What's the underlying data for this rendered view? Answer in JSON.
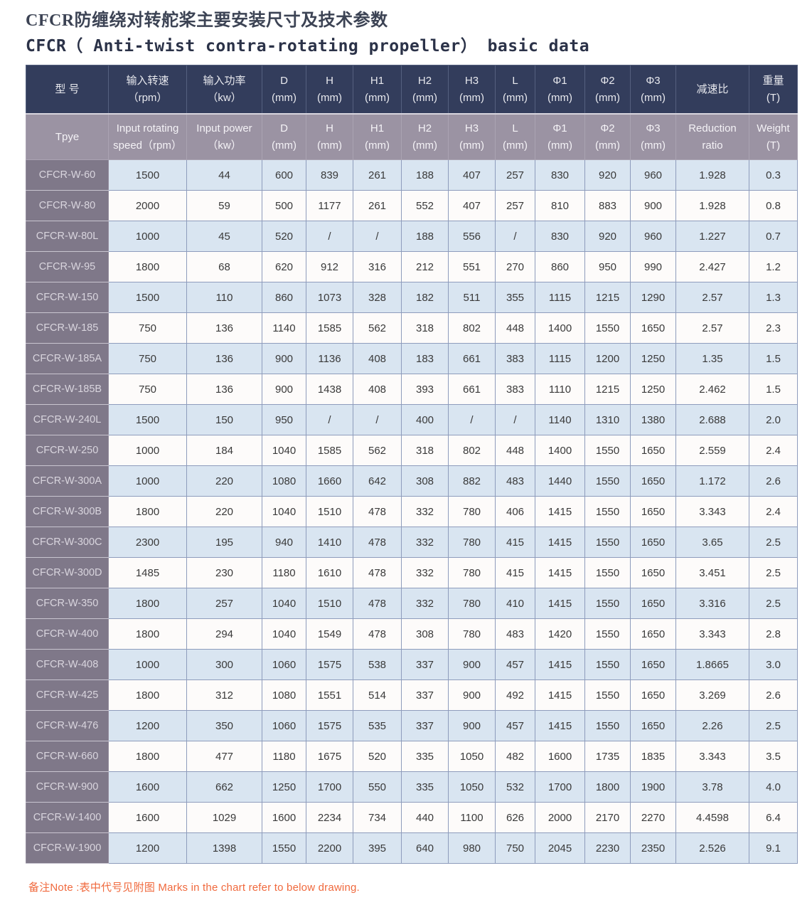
{
  "page": {
    "title_zh": "CFCR防缠绕对转舵桨主要安装尺寸及技术参数",
    "title_en": "CFCR（ Anti-twist contra-rotating propeller） basic data",
    "note": "备注Note :表中代号见附图 Marks in the chart refer to below drawing."
  },
  "colors": {
    "header_dark": "#333d5c",
    "header_grey": "#9b93a3",
    "model_column": "#7f7889",
    "row_blue": "#d9e5f1",
    "row_white": "#fdfbfa",
    "grid_line": "#8e9cbc",
    "note_orange": "#f0693d"
  },
  "table": {
    "columns": [
      {
        "key": "model",
        "zh1": "型 号",
        "zh2": "",
        "en1": "Tpye",
        "en2": ""
      },
      {
        "key": "speed",
        "zh1": "输入转速",
        "zh2": "（rpm）",
        "en1": "Input rotating",
        "en2": "speed（rpm）"
      },
      {
        "key": "power",
        "zh1": "输入功率",
        "zh2": "（kw）",
        "en1": "Input power",
        "en2": "（kw）"
      },
      {
        "key": "D",
        "zh1": "D",
        "zh2": "(mm)",
        "en1": "D",
        "en2": "(mm)"
      },
      {
        "key": "H",
        "zh1": "H",
        "zh2": "(mm)",
        "en1": "H",
        "en2": "(mm)"
      },
      {
        "key": "H1",
        "zh1": "H1",
        "zh2": "(mm)",
        "en1": "H1",
        "en2": "(mm)"
      },
      {
        "key": "H2",
        "zh1": "H2",
        "zh2": "(mm)",
        "en1": "H2",
        "en2": "(mm)"
      },
      {
        "key": "H3",
        "zh1": "H3",
        "zh2": "(mm)",
        "en1": "H3",
        "en2": "(mm)"
      },
      {
        "key": "L",
        "zh1": "L",
        "zh2": "(mm)",
        "en1": "L",
        "en2": "(mm)"
      },
      {
        "key": "Phi1",
        "zh1": "Φ1",
        "zh2": "(mm)",
        "en1": "Φ1",
        "en2": "(mm)"
      },
      {
        "key": "Phi2",
        "zh1": "Φ2",
        "zh2": "(mm)",
        "en1": "Φ2",
        "en2": "(mm)"
      },
      {
        "key": "Phi3",
        "zh1": "Φ3",
        "zh2": "(mm)",
        "en1": "Φ3",
        "en2": "(mm)"
      },
      {
        "key": "reduction",
        "zh1": "减速比",
        "zh2": "",
        "en1": "Reduction",
        "en2": "ratio"
      },
      {
        "key": "weight",
        "zh1": "重量",
        "zh2": "(T)",
        "en1": "Weight",
        "en2": "(T)"
      }
    ],
    "rows": [
      {
        "model": "CFCR-W-60",
        "values": [
          "1500",
          "44",
          "600",
          "839",
          "261",
          "188",
          "407",
          "257",
          "830",
          "920",
          "960",
          "1.928",
          "0.3"
        ]
      },
      {
        "model": "CFCR-W-80",
        "values": [
          "2000",
          "59",
          "500",
          "1177",
          "261",
          "552",
          "407",
          "257",
          "810",
          "883",
          "900",
          "1.928",
          "0.8"
        ]
      },
      {
        "model": "CFCR-W-80L",
        "values": [
          "1000",
          "45",
          "520",
          "/",
          "/",
          "188",
          "556",
          "/",
          "830",
          "920",
          "960",
          "1.227",
          "0.7"
        ]
      },
      {
        "model": "CFCR-W-95",
        "values": [
          "1800",
          "68",
          "620",
          "912",
          "316",
          "212",
          "551",
          "270",
          "860",
          "950",
          "990",
          "2.427",
          "1.2"
        ]
      },
      {
        "model": "CFCR-W-150",
        "values": [
          "1500",
          "110",
          "860",
          "1073",
          "328",
          "182",
          "511",
          "355",
          "1115",
          "1215",
          "1290",
          "2.57",
          "1.3"
        ]
      },
      {
        "model": "CFCR-W-185",
        "values": [
          "750",
          "136",
          "1140",
          "1585",
          "562",
          "318",
          "802",
          "448",
          "1400",
          "1550",
          "1650",
          "2.57",
          "2.3"
        ]
      },
      {
        "model": "CFCR-W-185A",
        "values": [
          "750",
          "136",
          "900",
          "1136",
          "408",
          "183",
          "661",
          "383",
          "1115",
          "1200",
          "1250",
          "1.35",
          "1.5"
        ]
      },
      {
        "model": "CFCR-W-185B",
        "values": [
          "750",
          "136",
          "900",
          "1438",
          "408",
          "393",
          "661",
          "383",
          "1110",
          "1215",
          "1250",
          "2.462",
          "1.5"
        ]
      },
      {
        "model": "CFCR-W-240L",
        "values": [
          "1500",
          "150",
          "950",
          "/",
          "/",
          "400",
          "/",
          "/",
          "1140",
          "1310",
          "1380",
          "2.688",
          "2.0"
        ]
      },
      {
        "model": "CFCR-W-250",
        "values": [
          "1000",
          "184",
          "1040",
          "1585",
          "562",
          "318",
          "802",
          "448",
          "1400",
          "1550",
          "1650",
          "2.559",
          "2.4"
        ]
      },
      {
        "model": "CFCR-W-300A",
        "values": [
          "1000",
          "220",
          "1080",
          "1660",
          "642",
          "308",
          "882",
          "483",
          "1440",
          "1550",
          "1650",
          "1.172",
          "2.6"
        ]
      },
      {
        "model": "CFCR-W-300B",
        "values": [
          "1800",
          "220",
          "1040",
          "1510",
          "478",
          "332",
          "780",
          "406",
          "1415",
          "1550",
          "1650",
          "3.343",
          "2.4"
        ]
      },
      {
        "model": "CFCR-W-300C",
        "values": [
          "2300",
          "195",
          "940",
          "1410",
          "478",
          "332",
          "780",
          "415",
          "1415",
          "1550",
          "1650",
          "3.65",
          "2.5"
        ]
      },
      {
        "model": "CFCR-W-300D",
        "values": [
          "1485",
          "230",
          "1180",
          "1610",
          "478",
          "332",
          "780",
          "415",
          "1415",
          "1550",
          "1650",
          "3.451",
          "2.5"
        ]
      },
      {
        "model": "CFCR-W-350",
        "values": [
          "1800",
          "257",
          "1040",
          "1510",
          "478",
          "332",
          "780",
          "410",
          "1415",
          "1550",
          "1650",
          "3.316",
          "2.5"
        ]
      },
      {
        "model": "CFCR-W-400",
        "values": [
          "1800",
          "294",
          "1040",
          "1549",
          "478",
          "308",
          "780",
          "483",
          "1420",
          "1550",
          "1650",
          "3.343",
          "2.8"
        ]
      },
      {
        "model": "CFCR-W-408",
        "values": [
          "1000",
          "300",
          "1060",
          "1575",
          "538",
          "337",
          "900",
          "457",
          "1415",
          "1550",
          "1650",
          "1.8665",
          "3.0"
        ]
      },
      {
        "model": "CFCR-W-425",
        "values": [
          "1800",
          "312",
          "1080",
          "1551",
          "514",
          "337",
          "900",
          "492",
          "1415",
          "1550",
          "1650",
          "3.269",
          "2.6"
        ]
      },
      {
        "model": "CFCR-W-476",
        "values": [
          "1200",
          "350",
          "1060",
          "1575",
          "535",
          "337",
          "900",
          "457",
          "1415",
          "1550",
          "1650",
          "2.26",
          "2.5"
        ]
      },
      {
        "model": "CFCR-W-660",
        "values": [
          "1800",
          "477",
          "1180",
          "1675",
          "520",
          "335",
          "1050",
          "482",
          "1600",
          "1735",
          "1835",
          "3.343",
          "3.5"
        ]
      },
      {
        "model": "CFCR-W-900",
        "values": [
          "1600",
          "662",
          "1250",
          "1700",
          "550",
          "335",
          "1050",
          "532",
          "1700",
          "1800",
          "1900",
          "3.78",
          "4.0"
        ]
      },
      {
        "model": "CFCR-W-1400",
        "values": [
          "1600",
          "1029",
          "1600",
          "2234",
          "734",
          "440",
          "1100",
          "626",
          "2000",
          "2170",
          "2270",
          "4.4598",
          "6.4"
        ]
      },
      {
        "model": "CFCR-W-1900",
        "values": [
          "1200",
          "1398",
          "1550",
          "2200",
          "395",
          "640",
          "980",
          "750",
          "2045",
          "2230",
          "2350",
          "2.526",
          "9.1"
        ]
      }
    ]
  }
}
